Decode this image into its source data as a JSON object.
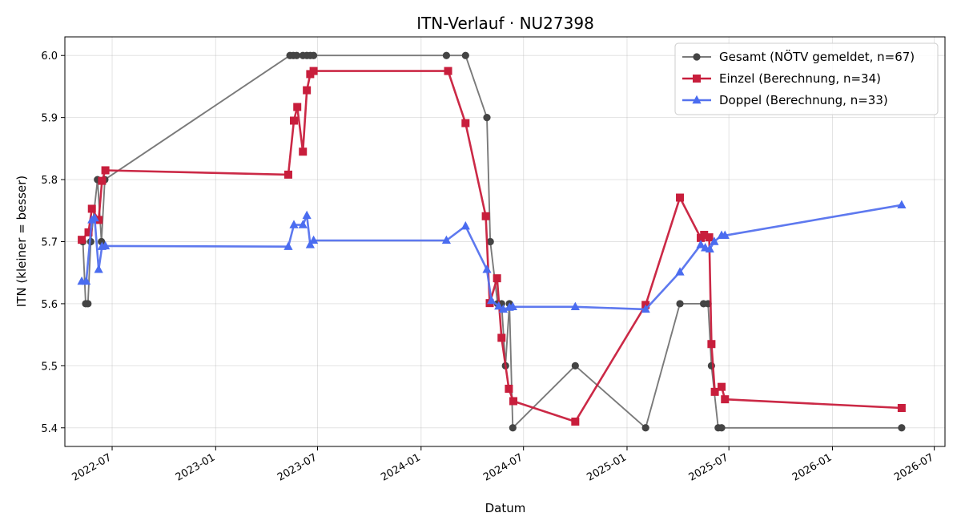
{
  "chart_data": {
    "type": "line",
    "title": "ITN-Verlauf · NU27398",
    "xlabel": "Datum",
    "ylabel": "ITN  (kleiner = besser)",
    "ylim": [
      5.37,
      6.03
    ],
    "xlim": [
      "2022-04-08",
      "2026-07-20"
    ],
    "grid": true,
    "legend_position": "top-right",
    "x_ticks": [
      "2022-07",
      "2023-01",
      "2023-07",
      "2024-01",
      "2024-07",
      "2025-01",
      "2025-07",
      "2026-01",
      "2026-07"
    ],
    "y_ticks": [
      "5.4",
      "5.5",
      "5.6",
      "5.7",
      "5.8",
      "5.9",
      "6.0"
    ],
    "series": [
      {
        "name": "Gesamt (NÖTV gemeldet, n=67)",
        "color": "#444444",
        "line_color": "#7a7a7a",
        "marker": "circle",
        "points": [
          [
            "2022-05-10",
            5.7
          ],
          [
            "2022-05-15",
            5.6
          ],
          [
            "2022-05-19",
            5.6
          ],
          [
            "2022-05-24",
            5.7
          ],
          [
            "2022-06-05",
            5.8
          ],
          [
            "2022-06-12",
            5.7
          ],
          [
            "2022-06-18",
            5.8
          ],
          [
            "2023-05-13",
            6.0
          ],
          [
            "2023-05-19",
            6.0
          ],
          [
            "2023-05-25",
            6.0
          ],
          [
            "2023-06-05",
            6.0
          ],
          [
            "2023-06-12",
            6.0
          ],
          [
            "2023-06-18",
            6.0
          ],
          [
            "2023-06-24",
            6.0
          ],
          [
            "2024-02-15",
            6.0
          ],
          [
            "2024-03-20",
            6.0
          ],
          [
            "2024-04-27",
            5.9
          ],
          [
            "2024-05-03",
            5.7
          ],
          [
            "2024-05-16",
            5.6
          ],
          [
            "2024-05-23",
            5.6
          ],
          [
            "2024-05-30",
            5.5
          ],
          [
            "2024-06-06",
            5.6
          ],
          [
            "2024-06-12",
            5.4
          ],
          [
            "2024-10-01",
            5.5
          ],
          [
            "2025-02-03",
            5.4
          ],
          [
            "2025-04-05",
            5.6
          ],
          [
            "2025-05-17",
            5.6
          ],
          [
            "2025-05-25",
            5.6
          ],
          [
            "2025-05-31",
            5.5
          ],
          [
            "2025-06-12",
            5.4
          ],
          [
            "2025-06-18",
            5.4
          ],
          [
            "2026-05-04",
            5.4
          ]
        ]
      },
      {
        "name": "Einzel (Berechnung, n=34)",
        "color": "#c81e3c",
        "line_color": "#c81e3c",
        "marker": "square",
        "points": [
          [
            "2022-05-08",
            5.703
          ],
          [
            "2022-05-20",
            5.715
          ],
          [
            "2022-05-26",
            5.753
          ],
          [
            "2022-06-07",
            5.735
          ],
          [
            "2022-06-13",
            5.798
          ],
          [
            "2022-06-19",
            5.815
          ],
          [
            "2023-05-10",
            5.808
          ],
          [
            "2023-05-20",
            5.895
          ],
          [
            "2023-05-26",
            5.917
          ],
          [
            "2023-06-05",
            5.845
          ],
          [
            "2023-06-12",
            5.944
          ],
          [
            "2023-06-18",
            5.97
          ],
          [
            "2023-06-24",
            5.975
          ],
          [
            "2024-02-18",
            5.975
          ],
          [
            "2024-03-20",
            5.891
          ],
          [
            "2024-04-25",
            5.741
          ],
          [
            "2024-05-02",
            5.601
          ],
          [
            "2024-05-15",
            5.641
          ],
          [
            "2024-05-23",
            5.545
          ],
          [
            "2024-06-05",
            5.463
          ],
          [
            "2024-06-13",
            5.443
          ],
          [
            "2024-10-01",
            5.41
          ],
          [
            "2025-02-03",
            5.598
          ],
          [
            "2025-04-05",
            5.771
          ],
          [
            "2025-05-12",
            5.706
          ],
          [
            "2025-05-18",
            5.711
          ],
          [
            "2025-05-27",
            5.707
          ],
          [
            "2025-05-31",
            5.535
          ],
          [
            "2025-06-06",
            5.458
          ],
          [
            "2025-06-18",
            5.466
          ],
          [
            "2025-06-24",
            5.446
          ],
          [
            "2026-05-04",
            5.432
          ]
        ]
      },
      {
        "name": "Doppel (Berechnung, n=33)",
        "color": "#4a6cf0",
        "line_color": "#5572ee",
        "marker": "triangle",
        "points": [
          [
            "2022-05-08",
            5.636
          ],
          [
            "2022-05-16",
            5.636
          ],
          [
            "2022-05-26",
            5.735
          ],
          [
            "2022-05-31",
            5.738
          ],
          [
            "2022-06-07",
            5.655
          ],
          [
            "2022-06-13",
            5.692
          ],
          [
            "2022-06-19",
            5.693
          ],
          [
            "2023-05-10",
            5.692
          ],
          [
            "2023-05-20",
            5.727
          ],
          [
            "2023-06-05",
            5.727
          ],
          [
            "2023-06-12",
            5.742
          ],
          [
            "2023-06-18",
            5.695
          ],
          [
            "2023-06-24",
            5.702
          ],
          [
            "2024-02-15",
            5.702
          ],
          [
            "2024-03-20",
            5.725
          ],
          [
            "2024-04-27",
            5.655
          ],
          [
            "2024-05-05",
            5.605
          ],
          [
            "2024-05-18",
            5.596
          ],
          [
            "2024-05-26",
            5.591
          ],
          [
            "2024-06-06",
            5.594
          ],
          [
            "2024-06-12",
            5.595
          ],
          [
            "2024-10-01",
            5.595
          ],
          [
            "2025-02-03",
            5.591
          ],
          [
            "2025-04-05",
            5.651
          ],
          [
            "2025-05-12",
            5.695
          ],
          [
            "2025-05-20",
            5.69
          ],
          [
            "2025-05-28",
            5.688
          ],
          [
            "2025-06-05",
            5.7
          ],
          [
            "2025-06-18",
            5.71
          ],
          [
            "2025-06-24",
            5.71
          ],
          [
            "2026-05-04",
            5.759
          ]
        ]
      }
    ]
  }
}
